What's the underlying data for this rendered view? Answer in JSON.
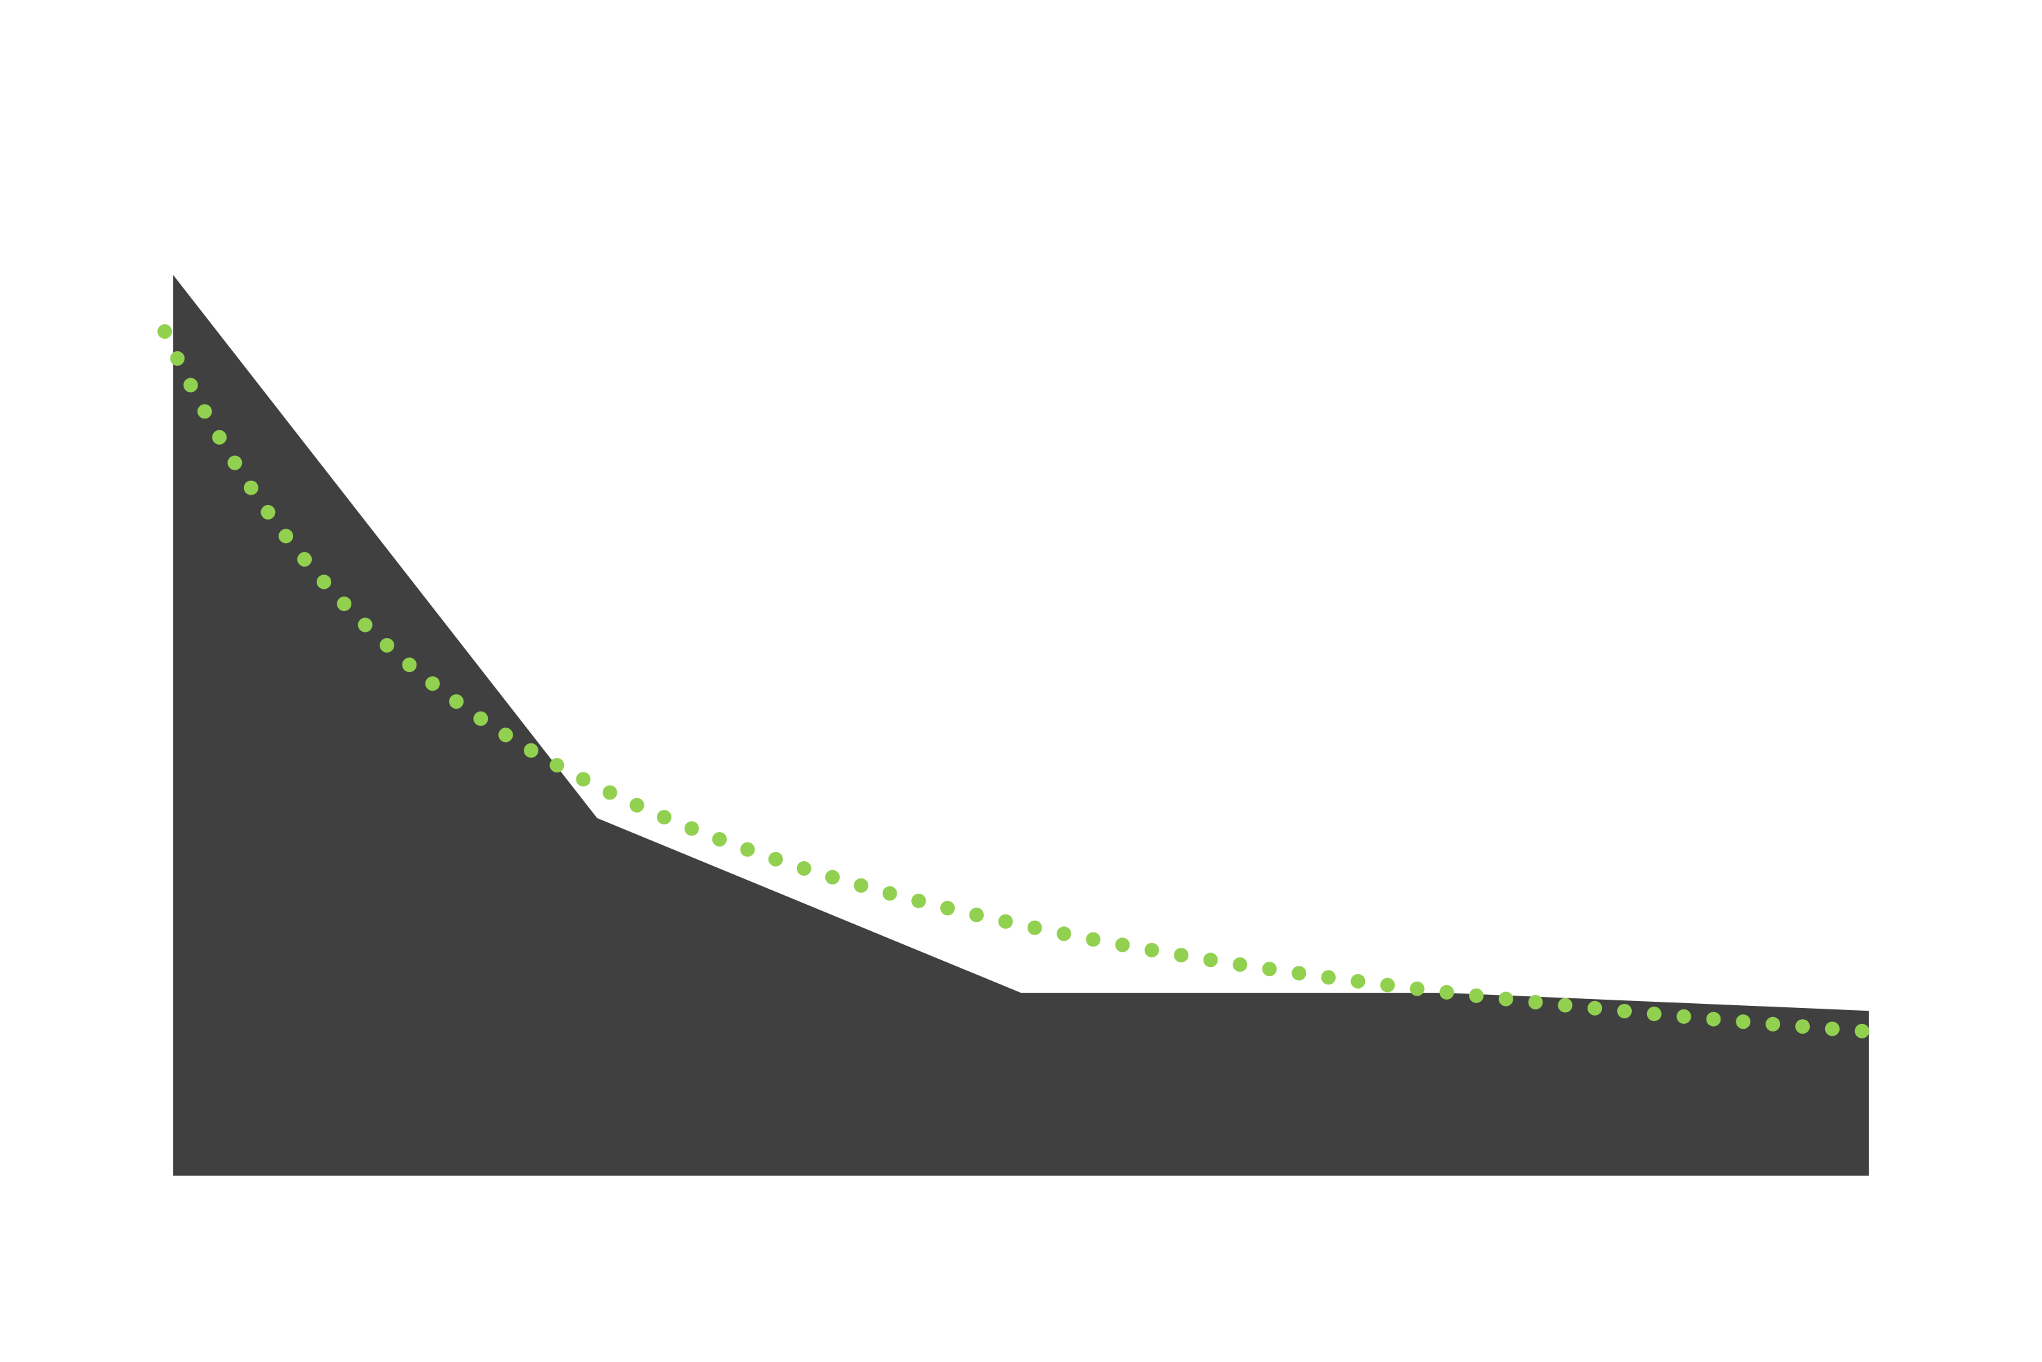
{
  "chart_data": {
    "type": "area",
    "title": "",
    "xlabel": "",
    "ylabel": "",
    "x": [
      1,
      2,
      3,
      4,
      5
    ],
    "xlim": [
      1,
      5
    ],
    "ylim": [
      0,
      10
    ],
    "grid": false,
    "legend": "none",
    "series": [
      {
        "type": "area",
        "values": [
          10,
          3.97,
          2.03,
          2.03,
          1.83
        ],
        "color": "#404040"
      },
      {
        "type": "trendline",
        "style": "dotted",
        "fit": "power",
        "values": [
          9.17,
          3.6,
          2.1,
          1.6,
          1.6
        ],
        "color": "#92d050"
      }
    ]
  }
}
